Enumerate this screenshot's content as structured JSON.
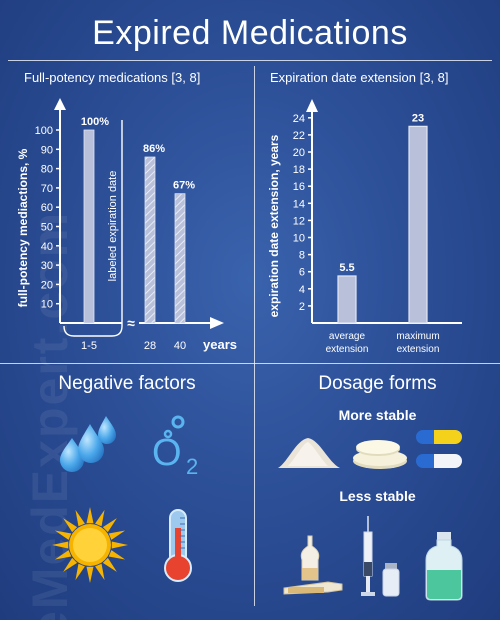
{
  "title": "Expired Medications",
  "watermark": "eMedExpert.com",
  "left_chart": {
    "title": "Full-potency medications [3, 8]",
    "ylabel": "full-potency mediactions, %",
    "ylim": [
      0,
      100
    ],
    "yticks": [
      "10",
      "20",
      "30",
      "40",
      "50",
      "60",
      "70",
      "80",
      "90",
      "100"
    ],
    "bars": [
      {
        "x": "1-5",
        "value": 100,
        "label": "100%",
        "fill": "solid"
      },
      {
        "x": "28",
        "value": 86,
        "label": "86%",
        "fill": "hatched"
      },
      {
        "x": "40",
        "value": 67,
        "label": "67%",
        "fill": "hatched"
      }
    ],
    "xlabel": "years",
    "annotation": "labeled expiration date",
    "break_symbol": "≈"
  },
  "chart_data": {
    "type": "bar",
    "title": "Expiration date extension [3, 8]",
    "ylabel": "expiration date extension, years",
    "xlabel": "",
    "ylim": [
      0,
      24
    ],
    "yticks": [
      "2",
      "4",
      "6",
      "8",
      "10",
      "12",
      "14",
      "16",
      "18",
      "20",
      "22",
      "24"
    ],
    "categories": [
      [
        "average",
        "extension"
      ],
      [
        "maximum",
        "extension"
      ]
    ],
    "values": [
      5.5,
      23
    ],
    "value_labels": [
      "5.5",
      "23"
    ]
  },
  "negative": {
    "title": "Negative factors",
    "o2_label": "O",
    "o2_sub": "2"
  },
  "dosage": {
    "title": "Dosage forms",
    "more": "More stable",
    "less": "Less stable"
  },
  "colors": {
    "background": "#2c4f97",
    "bar_fill": "#b8c0da",
    "accent_blue": "#4aa7ea",
    "sun": "#f6b400",
    "capsule_yellow": "#f4d21c",
    "capsule_blue": "#2a6bd1",
    "liquid_green": "#4cc79d"
  },
  "icons": [
    "water-drops-icon",
    "oxygen-icon",
    "sun-icon",
    "thermometer-icon",
    "powder-icon",
    "tablets-icon",
    "capsule-icon",
    "ampoule-icon",
    "syringe-icon",
    "vial-icon",
    "bottle-icon"
  ]
}
